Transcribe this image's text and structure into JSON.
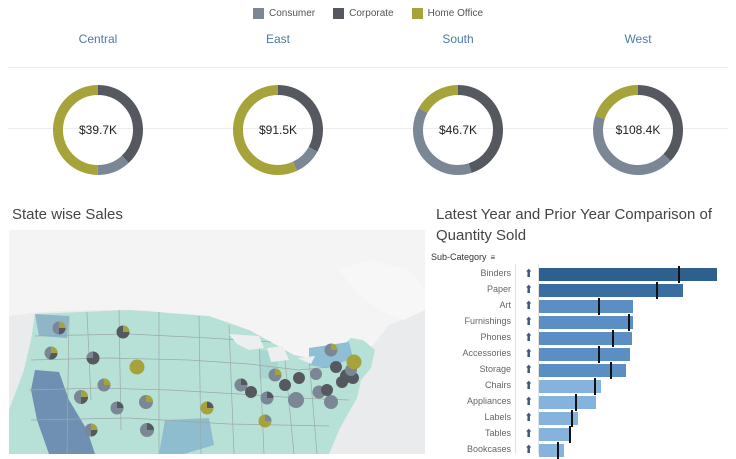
{
  "legend": [
    {
      "label": "Consumer",
      "color": "#7b8795"
    },
    {
      "label": "Corporate",
      "color": "#55595f"
    },
    {
      "label": "Home Office",
      "color": "#a6a33b"
    }
  ],
  "regions": [
    {
      "name": "Central",
      "total": "$39.7K",
      "consumer": 0.12,
      "corporate": 0.38,
      "home_office": 0.5
    },
    {
      "name": "East",
      "total": "$91.5K",
      "consumer": 0.1,
      "corporate": 0.33,
      "home_office": 0.57
    },
    {
      "name": "South",
      "total": "$46.7K",
      "consumer": 0.38,
      "corporate": 0.45,
      "home_office": 0.17
    },
    {
      "name": "West",
      "total": "$108.4K",
      "consumer": 0.43,
      "corporate": 0.37,
      "home_office": 0.2
    }
  ],
  "map": {
    "title": "State wise Sales"
  },
  "comparison": {
    "title_line1": "Latest Year and Prior Year Comparison of",
    "title_line2": "Quantity Sold",
    "header": "Sub-Category",
    "rows": [
      {
        "label": "Binders",
        "value": 1.0,
        "prior": 0.78,
        "color": "#2d5f8f"
      },
      {
        "label": "Paper",
        "value": 0.81,
        "prior": 0.66,
        "color": "#3a6ea1"
      },
      {
        "label": "Art",
        "value": 0.53,
        "prior": 0.33,
        "color": "#5b8fc4"
      },
      {
        "label": "Furnishings",
        "value": 0.53,
        "prior": 0.5,
        "color": "#5b8fc4"
      },
      {
        "label": "Phones",
        "value": 0.52,
        "prior": 0.41,
        "color": "#5b8fc4"
      },
      {
        "label": "Accessories",
        "value": 0.51,
        "prior": 0.33,
        "color": "#5b8fc4"
      },
      {
        "label": "Storage",
        "value": 0.49,
        "prior": 0.4,
        "color": "#5b8fc4"
      },
      {
        "label": "Chairs",
        "value": 0.35,
        "prior": 0.31,
        "color": "#86b3de"
      },
      {
        "label": "Appliances",
        "value": 0.32,
        "prior": 0.2,
        "color": "#86b3de"
      },
      {
        "label": "Labels",
        "value": 0.22,
        "prior": 0.18,
        "color": "#86b3de"
      },
      {
        "label": "Tables",
        "value": 0.17,
        "prior": 0.17,
        "color": "#86b3de"
      },
      {
        "label": "Bookcases",
        "value": 0.14,
        "prior": 0.1,
        "color": "#86b3de"
      }
    ]
  }
}
